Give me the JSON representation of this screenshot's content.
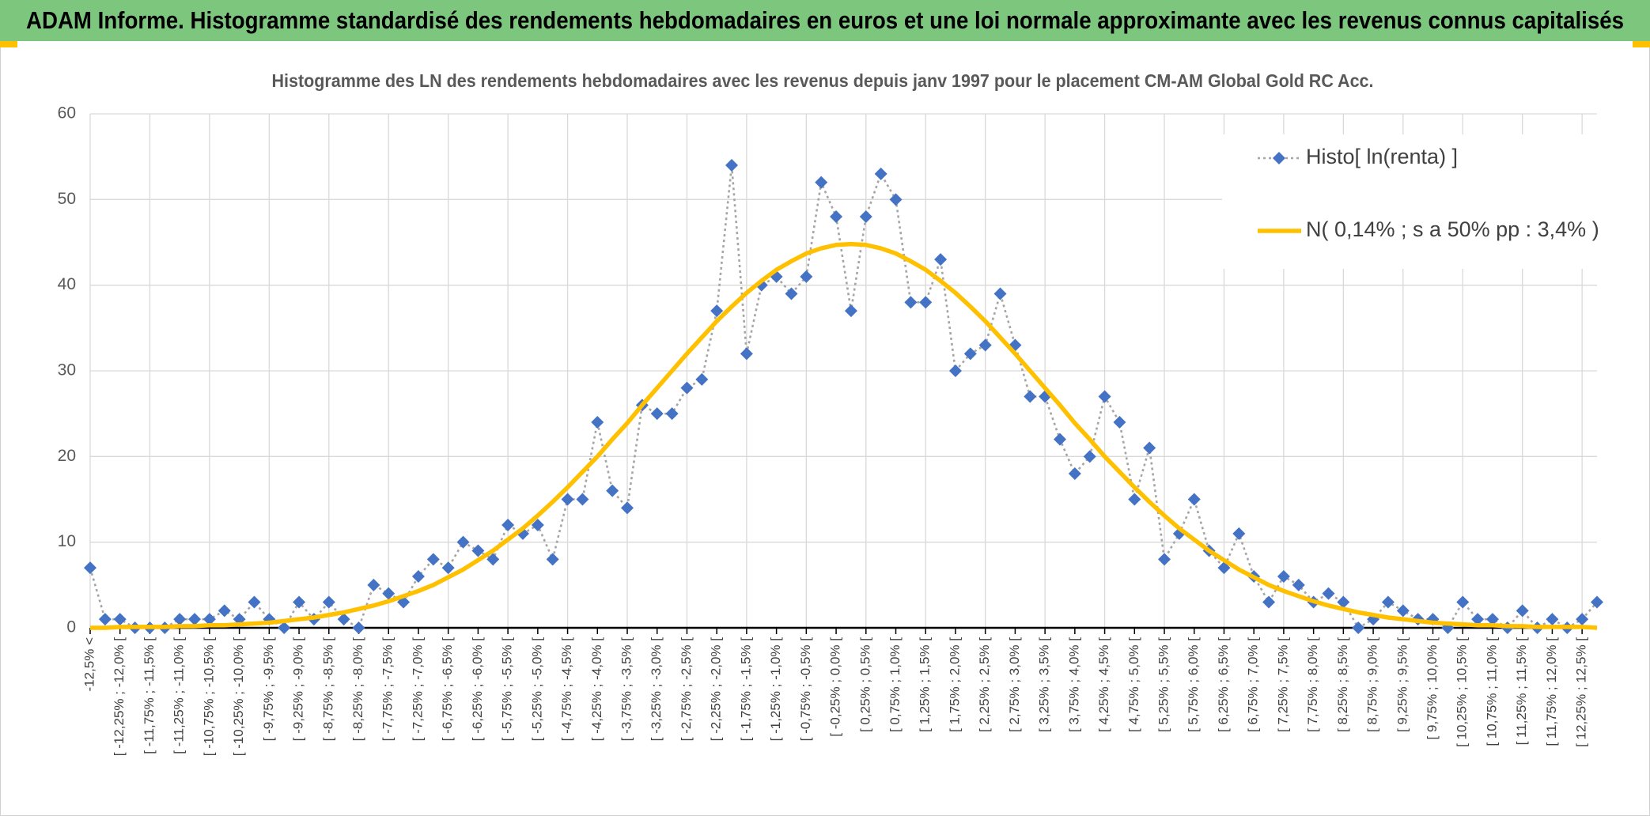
{
  "chart_data": {
    "type": "line",
    "title": "ADAM Informe. Histogramme standardisé des rendements hebdomadaires en euros et une loi normale approximante avec les revenus connus capitalisés",
    "subtitle": "Histogramme des LN des rendements hebdomadaires avec les revenus depuis janv 1997 pour le placement CM-AM Global Gold RC Acc.",
    "categories": [
      "-12,5% <",
      null,
      "[ -12,25% ; -12,0% [",
      null,
      "[ -11,75% ; -11,5% [",
      null,
      "[ -11,25% ; -11,0% [",
      null,
      "[ -10,75% ; -10,5% [",
      null,
      "[ -10,25% ; -10,0% [",
      null,
      "[ -9,75% ; -9,5% [",
      null,
      "[ -9,25% ; -9,0% [",
      null,
      "[ -8,75% ; -8,5% [",
      null,
      "[ -8,25% ; -8,0% [",
      null,
      "[ -7,75% ; -7,5% [",
      null,
      "[ -7,25% ; -7,0% [",
      null,
      "[ -6,75% ; -6,5% [",
      null,
      "[ -6,25% ; -6,0% [",
      null,
      "[ -5,75% ; -5,5% [",
      null,
      "[ -5,25% ; -5,0% [",
      null,
      "[ -4,75% ; -4,5% [",
      null,
      "[ -4,25% ; -4,0% [",
      null,
      "[ -3,75% ; -3,5% [",
      null,
      "[ -3,25% ; -3,0% [",
      null,
      "[ -2,75% ; -2,5% [",
      null,
      "[ -2,25% ; -2,0% [",
      null,
      "[ -1,75% ; -1,5% [",
      null,
      "[ -1,25% ; -1,0% [",
      null,
      "[ -0,75% ; -0,5% [",
      null,
      "[ -0,25% ; 0,0% [",
      null,
      "[ 0,25% ; 0,5% [",
      null,
      "[ 0,75% ; 1,0% [",
      null,
      "[ 1,25% ; 1,5% [",
      null,
      "[ 1,75% ; 2,0% [",
      null,
      "[ 2,25% ; 2,5% [",
      null,
      "[ 2,75% ; 3,0% [",
      null,
      "[ 3,25% ; 3,5% [",
      null,
      "[ 3,75% ; 4,0% [",
      null,
      "[ 4,25% ; 4,5% [",
      null,
      "[ 4,75% ; 5,0% [",
      null,
      "[ 5,25% ; 5,5% [",
      null,
      "[ 5,75% ; 6,0% [",
      null,
      "[ 6,25% ; 6,5% [",
      null,
      "[ 6,75% ; 7,0% [",
      null,
      "[ 7,25% ; 7,5% [",
      null,
      "[ 7,75% ; 8,0% [",
      null,
      "[ 8,25% ; 8,5% [",
      null,
      "[ 8,75% ; 9,0% [",
      null,
      "[ 9,25% ; 9,5% [",
      null,
      "[ 9,75% ; 10,0% [",
      null,
      "[ 10,25% ; 10,5% [",
      null,
      "[ 10,75% ; 11,0% [",
      null,
      "[ 11,25% ; 11,5% [",
      null,
      "[ 11,75% ; 12,0% [",
      null,
      "[ 12,25% ; 12,5% [",
      null
    ],
    "series": [
      {
        "name": "Histo[ ln(renta) ]",
        "color": "#a5a5a5",
        "marker_color": "#4472c4",
        "marker": "diamond",
        "line_style": "dotted",
        "values": [
          7,
          1,
          1,
          0,
          0,
          0,
          1,
          1,
          1,
          2,
          1,
          3,
          1,
          0,
          3,
          1,
          3,
          1,
          0,
          5,
          4,
          3,
          6,
          8,
          7,
          10,
          9,
          8,
          12,
          11,
          12,
          8,
          15,
          15,
          24,
          16,
          14,
          26,
          25,
          25,
          28,
          29,
          37,
          54,
          32,
          40,
          41,
          39,
          41,
          52,
          48,
          37,
          48,
          53,
          50,
          38,
          38,
          43,
          30,
          32,
          33,
          39,
          33,
          27,
          27,
          22,
          18,
          20,
          27,
          24,
          15,
          21,
          8,
          11,
          15,
          9,
          7,
          11,
          6,
          3,
          6,
          5,
          3,
          4,
          3,
          0,
          1,
          3,
          2,
          1,
          1,
          0,
          3,
          1,
          1,
          0,
          2,
          0,
          1,
          0,
          1,
          3
        ]
      },
      {
        "name": "N( 0,14% ; s a 50% pp : 3,4% )",
        "color": "#ffc000",
        "line_style": "solid",
        "values": [
          0,
          0,
          0.1,
          0.1,
          0.1,
          0.1,
          0.2,
          0.2,
          0.3,
          0.3,
          0.4,
          0.5,
          0.6,
          0.8,
          1.0,
          1.2,
          1.5,
          1.8,
          2.2,
          2.6,
          3.1,
          3.7,
          4.3,
          5.0,
          5.9,
          6.8,
          7.9,
          9.0,
          10.3,
          11.6,
          13.1,
          14.7,
          16.4,
          18.2,
          20.0,
          22.0,
          23.9,
          26.0,
          28.0,
          30.0,
          32.0,
          33.9,
          35.8,
          37.5,
          39.1,
          40.5,
          41.8,
          42.8,
          43.7,
          44.3,
          44.7,
          44.8,
          44.7,
          44.3,
          43.7,
          42.8,
          41.8,
          40.5,
          39.1,
          37.5,
          35.8,
          33.9,
          32.0,
          30.0,
          28.0,
          26.0,
          23.9,
          22.0,
          20.0,
          18.2,
          16.4,
          14.7,
          13.1,
          11.6,
          10.3,
          9.0,
          7.9,
          6.8,
          5.9,
          5.0,
          4.3,
          3.7,
          3.1,
          2.6,
          2.2,
          1.8,
          1.5,
          1.2,
          1.0,
          0.8,
          0.6,
          0.5,
          0.4,
          0.3,
          0.3,
          0.2,
          0.2,
          0.1,
          0.1,
          0.1,
          0.1,
          0
        ]
      }
    ],
    "ylim": [
      0,
      60
    ],
    "yticks": [
      0,
      10,
      20,
      30,
      40,
      50,
      60
    ],
    "grid": true,
    "legend": "top-right"
  }
}
